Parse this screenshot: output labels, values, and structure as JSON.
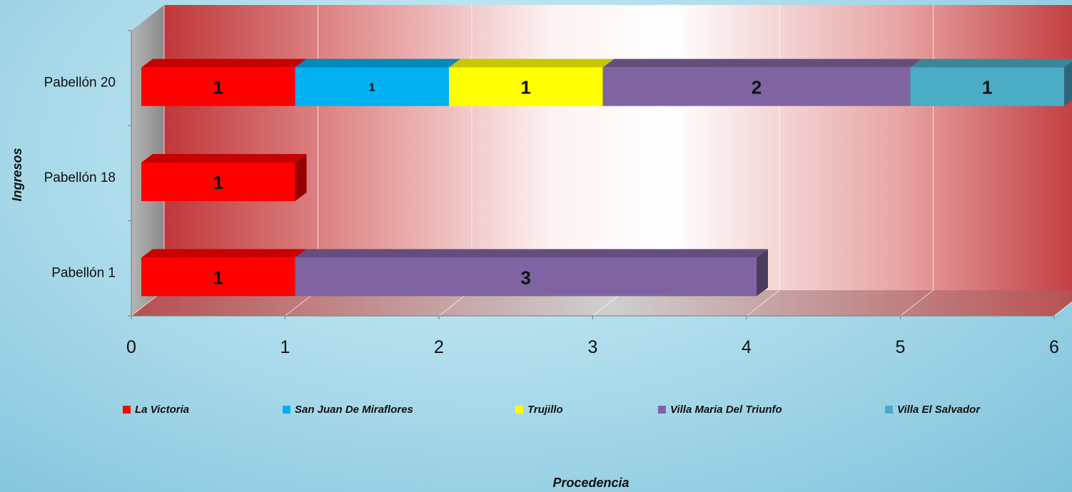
{
  "chart_data": {
    "type": "bar",
    "orientation": "horizontal",
    "stacked": true,
    "three_d": true,
    "categories": [
      "Pabellón 20",
      "Pabellón 18",
      "Pabellón 1"
    ],
    "series": [
      {
        "name": "La Victoria",
        "color": "#ff0000",
        "values": [
          1,
          1,
          1
        ]
      },
      {
        "name": "San Juan De Miraflores",
        "color": "#00b0f0",
        "values": [
          1,
          0,
          0
        ]
      },
      {
        "name": "Trujillo",
        "color": "#ffff00",
        "values": [
          1,
          0,
          0
        ]
      },
      {
        "name": "Villa Maria Del Triunfo",
        "color": "#8064a2",
        "values": [
          2,
          0,
          3
        ]
      },
      {
        "name": "Villa El Salvador",
        "color": "#4bacc6",
        "values": [
          1,
          0,
          0
        ]
      }
    ],
    "xlim": [
      0,
      6
    ],
    "xticks": [
      "0",
      "1",
      "2",
      "3",
      "4",
      "5",
      "6"
    ],
    "xlabel": "Procedencia",
    "ylabel": "Ingresos",
    "grid": true,
    "legend_position": "bottom"
  }
}
